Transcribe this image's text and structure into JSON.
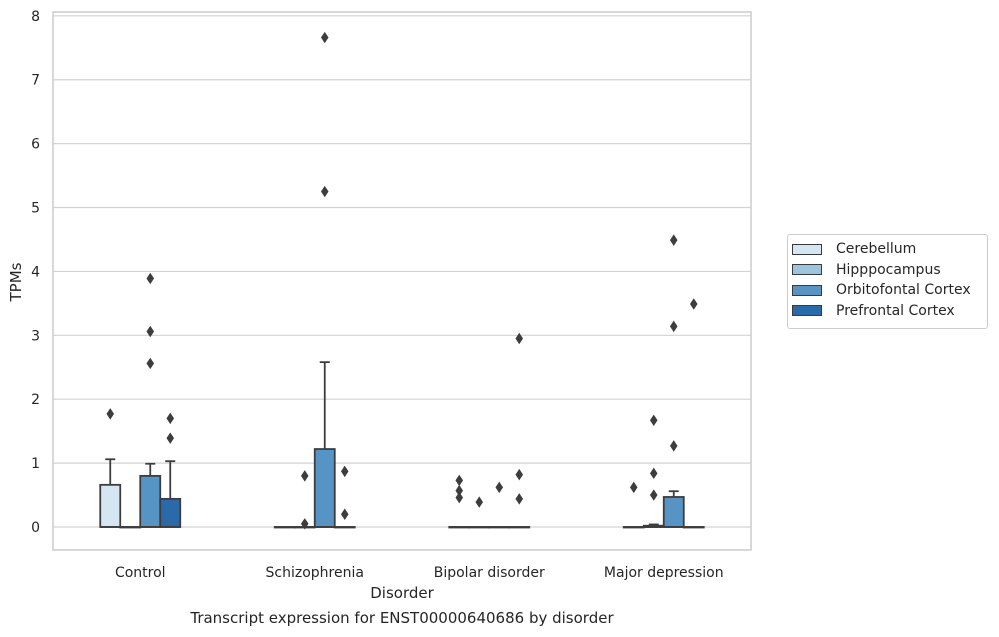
{
  "chart_data": {
    "type": "box",
    "title": "",
    "caption": "Transcript expression for ENST00000640686 by disorder",
    "xlabel": "Disorder",
    "ylabel": "TPMs",
    "ylim": [
      -0.36,
      8.06
    ],
    "yticks": [
      "0",
      "1",
      "2",
      "3",
      "4",
      "5",
      "6",
      "7",
      "8"
    ],
    "grid": "horizontal",
    "legend_placement": "right",
    "categories": [
      "Control",
      "Schizophrenia",
      "Bipolar disorder",
      "Major depression"
    ],
    "series": [
      {
        "name": "Cerebellum",
        "color": "#d6e5f2",
        "boxes": [
          {
            "q1": 0,
            "median": 0,
            "q3": 0.66,
            "whisker_low": 0,
            "whisker_high": 1.06,
            "outliers": [
              1.77
            ]
          },
          {
            "q1": 0,
            "median": 0,
            "q3": 0,
            "whisker_low": 0,
            "whisker_high": 0,
            "outliers": []
          },
          {
            "q1": 0,
            "median": 0,
            "q3": 0,
            "whisker_low": 0,
            "whisker_high": 0,
            "outliers": [
              0.73,
              0.57,
              0.46
            ]
          },
          {
            "q1": 0,
            "median": 0,
            "q3": 0,
            "whisker_low": 0,
            "whisker_high": 0,
            "outliers": [
              0.62
            ]
          }
        ]
      },
      {
        "name": "Hipppocampus",
        "color": "#9dc3dd",
        "boxes": [
          {
            "q1": 0,
            "median": 0,
            "q3": 0,
            "whisker_low": 0,
            "whisker_high": 0,
            "outliers": []
          },
          {
            "q1": 0,
            "median": 0,
            "q3": 0,
            "whisker_low": 0,
            "whisker_high": 0,
            "outliers": [
              0.8,
              0.05
            ]
          },
          {
            "q1": 0,
            "median": 0,
            "q3": 0,
            "whisker_low": 0,
            "whisker_high": 0,
            "outliers": [
              0.39
            ]
          },
          {
            "q1": 0,
            "median": 0,
            "q3": 0.02,
            "whisker_low": 0,
            "whisker_high": 0.04,
            "outliers": [
              1.67,
              0.84,
              0.5
            ]
          }
        ]
      },
      {
        "name": "Orbitofontal Cortex",
        "color": "#5594c4",
        "boxes": [
          {
            "q1": 0,
            "median": 0,
            "q3": 0.8,
            "whisker_low": 0,
            "whisker_high": 0.99,
            "outliers": [
              3.89,
              3.06,
              2.56
            ]
          },
          {
            "q1": 0,
            "median": 0,
            "q3": 1.22,
            "whisker_low": 0,
            "whisker_high": 2.58,
            "outliers": [
              7.66,
              5.25
            ]
          },
          {
            "q1": 0,
            "median": 0,
            "q3": 0,
            "whisker_low": 0,
            "whisker_high": 0,
            "outliers": [
              0.62
            ]
          },
          {
            "q1": 0,
            "median": 0,
            "q3": 0.47,
            "whisker_low": 0,
            "whisker_high": 0.56,
            "outliers": [
              4.49,
              3.14,
              1.27
            ]
          }
        ]
      },
      {
        "name": "Prefrontal Cortex",
        "color": "#2a6aa8",
        "boxes": [
          {
            "q1": 0,
            "median": 0,
            "q3": 0.44,
            "whisker_low": 0,
            "whisker_high": 1.03,
            "outliers": [
              1.7,
              1.39
            ]
          },
          {
            "q1": 0,
            "median": 0,
            "q3": 0,
            "whisker_low": 0,
            "whisker_high": 0,
            "outliers": [
              0.87,
              0.2
            ]
          },
          {
            "q1": 0,
            "median": 0,
            "q3": 0,
            "whisker_low": 0,
            "whisker_high": 0,
            "outliers": [
              2.95,
              0.82,
              0.44
            ]
          },
          {
            "q1": 0,
            "median": 0,
            "q3": 0,
            "whisker_low": 0,
            "whisker_high": 0,
            "outliers": [
              3.49
            ]
          }
        ]
      }
    ]
  }
}
